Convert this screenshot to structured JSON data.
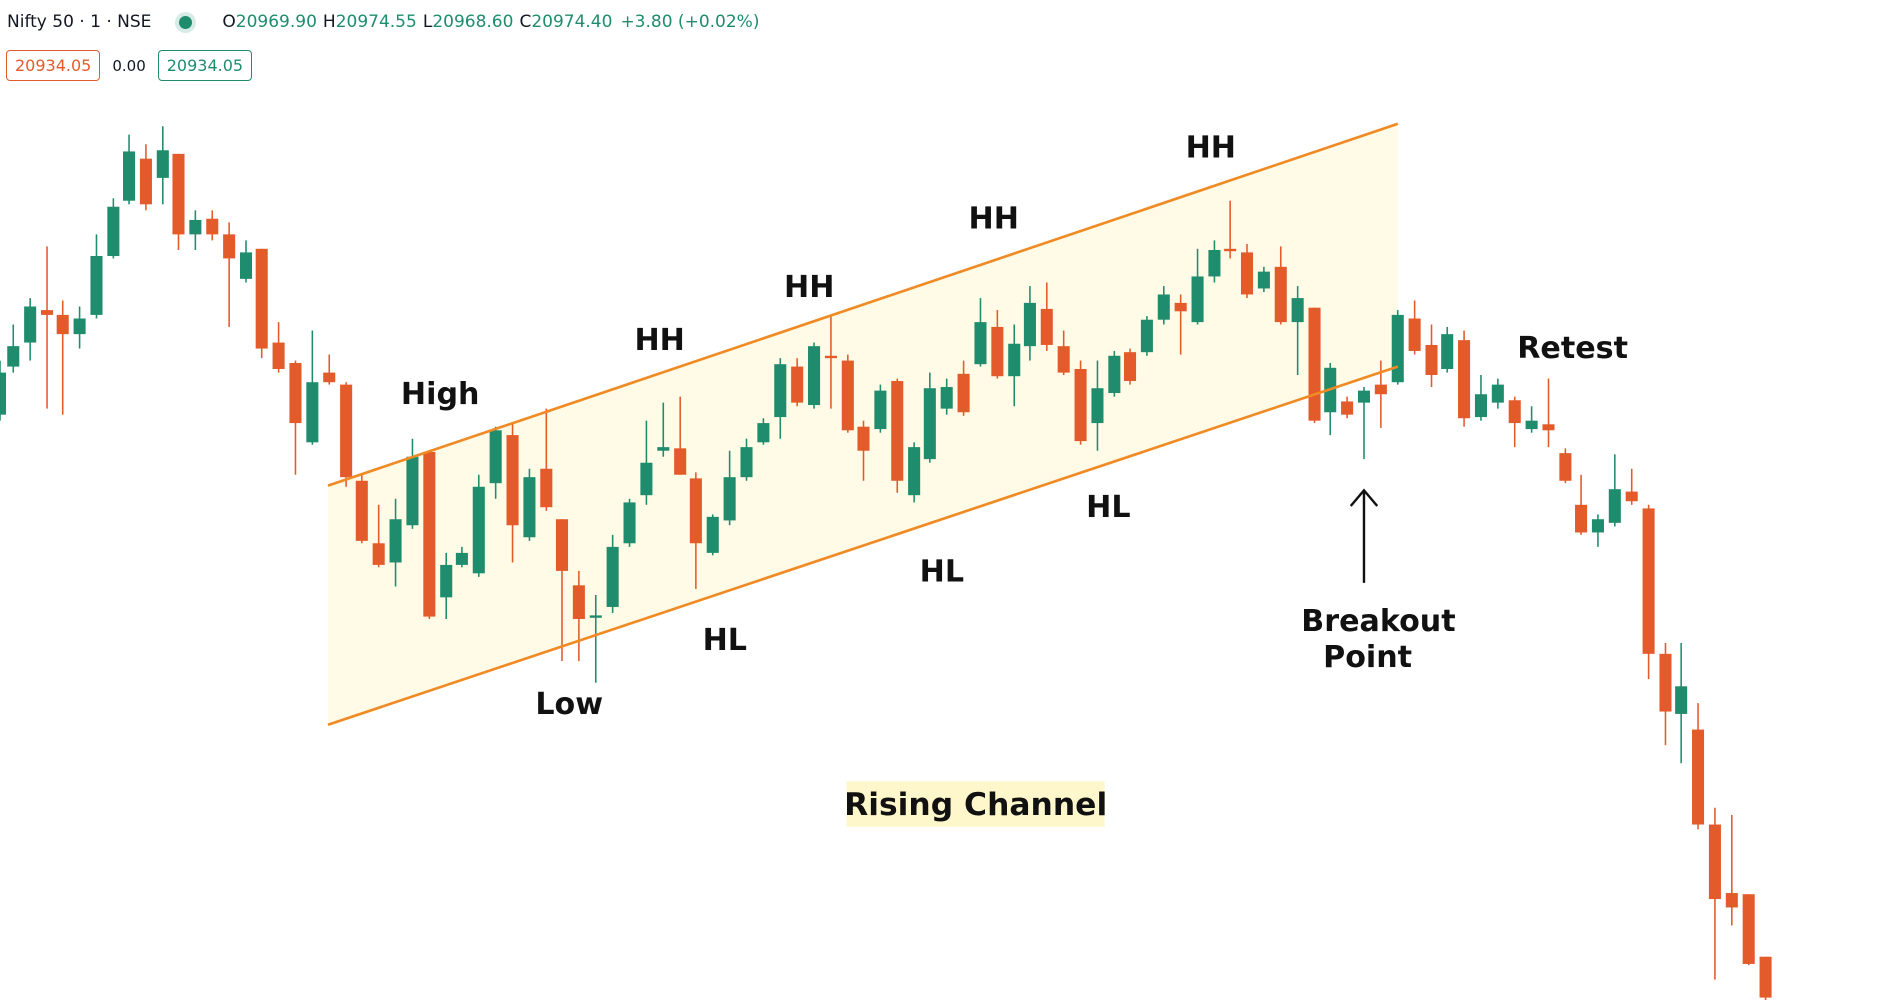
{
  "header": {
    "symbol": "Nifty 50 · 1 · NSE",
    "ohlc": [
      {
        "key": "O",
        "value": "20969.90"
      },
      {
        "key": "H",
        "value": "20974.55"
      },
      {
        "key": "L",
        "value": "20968.60"
      },
      {
        "key": "C",
        "value": "20974.40"
      }
    ],
    "change": "+3.80 (+0.02%)"
  },
  "quote": {
    "bid": "20934.05",
    "spread": "0.00",
    "ask": "20934.05"
  },
  "annotations": {
    "high": "High",
    "low": "Low",
    "higher_highs": [
      "HH",
      "HH",
      "HH",
      "HH"
    ],
    "higher_lows": [
      "HL",
      "HL",
      "HL"
    ],
    "breakout": [
      "Breakout",
      "Point"
    ],
    "retest": "Retest",
    "pattern": "Rising Channel"
  }
}
